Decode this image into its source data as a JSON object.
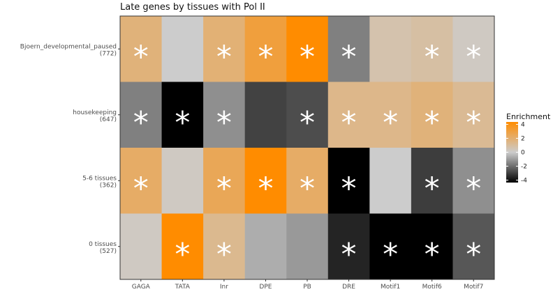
{
  "chart_data": {
    "type": "heatmap",
    "title": "Late genes by tissues with Pol II",
    "xlabel": "",
    "ylabel": "",
    "x_categories": [
      "GAGA",
      "TATA",
      "Inr",
      "DPE",
      "PB",
      "DRE",
      "Motif1",
      "Motif6",
      "Motif7"
    ],
    "y_categories": [
      {
        "name": "Bjoern_developmental_paused",
        "count": "(772)"
      },
      {
        "name": "housekeeping",
        "count": "(647)"
      },
      {
        "name": "5-6 tissues",
        "count": "(362)"
      },
      {
        "name": "0 tissues",
        "count": "(527)"
      }
    ],
    "values": [
      [
        1.6,
        0.0,
        1.7,
        2.8,
        4.0,
        -1.5,
        0.6,
        0.8,
        0.2
      ],
      [
        -1.5,
        -4.0,
        -1.2,
        -2.7,
        -2.5,
        1.3,
        1.3,
        1.6,
        1.1
      ],
      [
        2.0,
        0.2,
        2.3,
        4.0,
        2.0,
        -4.0,
        0.0,
        -2.8,
        -1.2
      ],
      [
        0.2,
        4.0,
        1.2,
        -0.6,
        -1.0,
        -3.3,
        -4.0,
        -4.0,
        -2.3
      ]
    ],
    "significant": [
      [
        true,
        false,
        true,
        true,
        true,
        true,
        false,
        true,
        true
      ],
      [
        true,
        true,
        true,
        false,
        true,
        true,
        true,
        true,
        true
      ],
      [
        true,
        false,
        true,
        true,
        true,
        true,
        false,
        true,
        true
      ],
      [
        false,
        true,
        true,
        false,
        false,
        true,
        true,
        true,
        true
      ]
    ],
    "significance_marker": "*",
    "legend": {
      "title": "Enrichment",
      "ticks": [
        "4",
        "2",
        "0",
        "-2",
        "-4"
      ],
      "range": [
        -4,
        4
      ],
      "placement": "right"
    },
    "colors": {
      "low": "#000000",
      "mid": "#cccccc",
      "high": "#ff8c00",
      "star": "#ffffff",
      "border": "#333333"
    }
  }
}
